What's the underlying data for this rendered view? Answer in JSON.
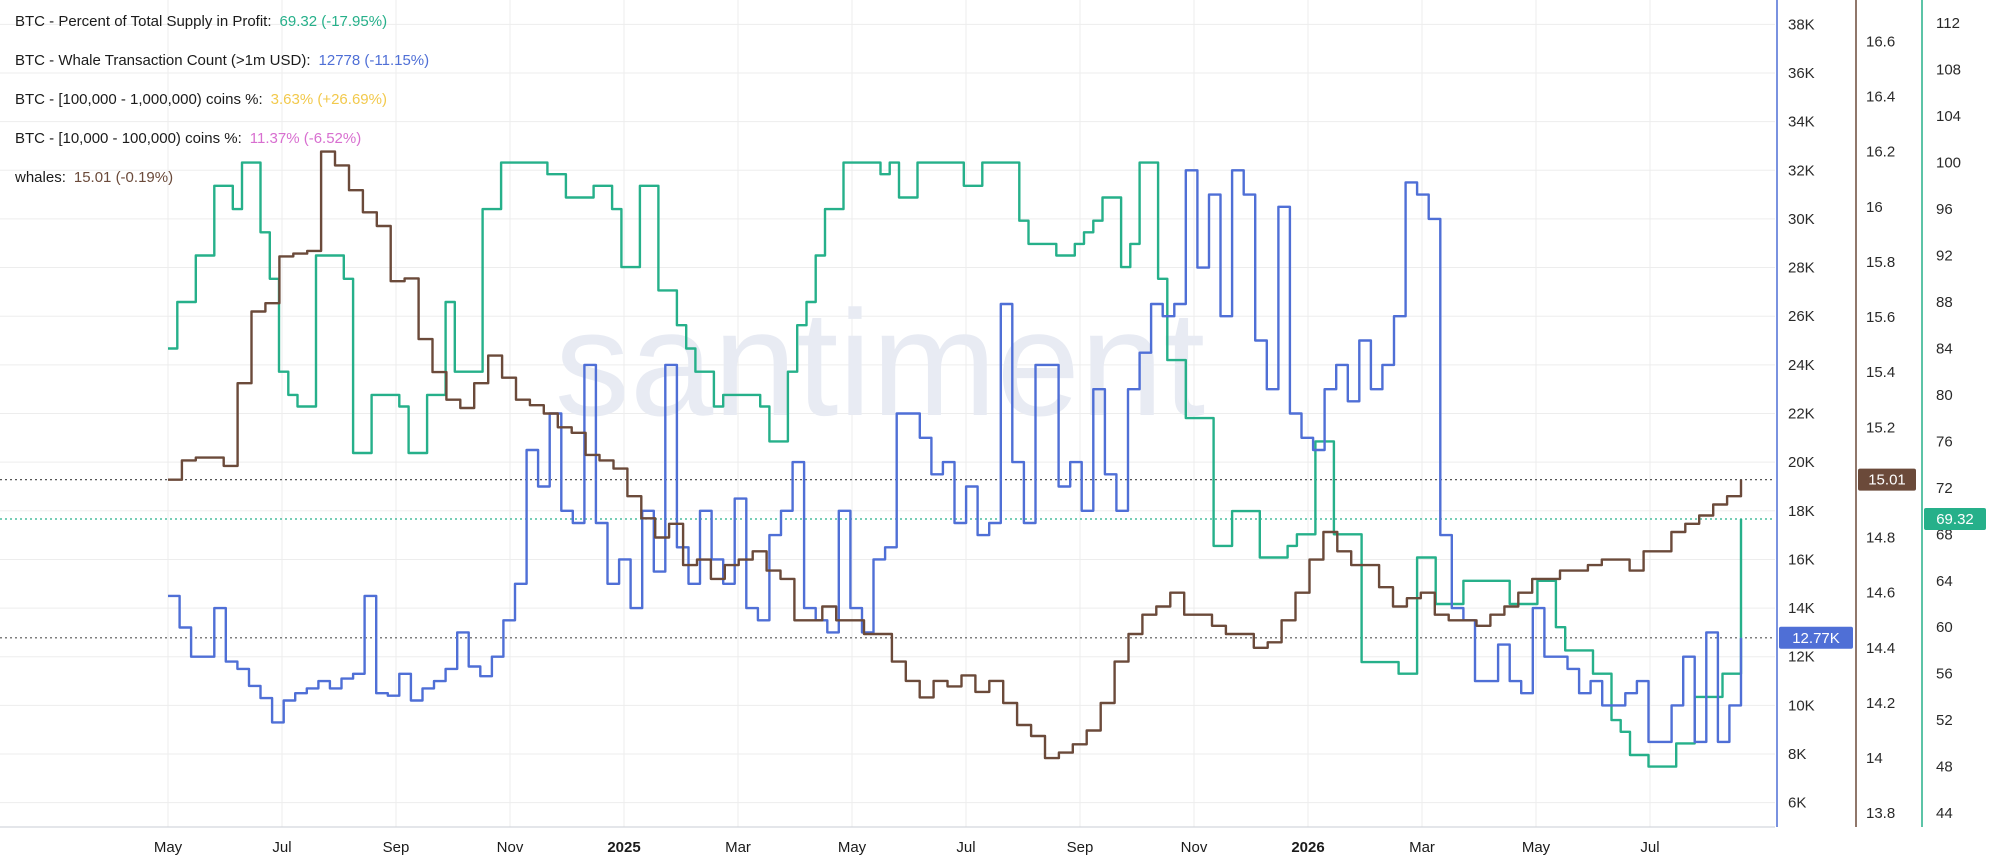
{
  "legend": [
    {
      "label": "BTC - Percent of Total Supply in Profit:",
      "value": "69.32 (-17.95%)",
      "color": "#26b08a"
    },
    {
      "label": "BTC - Whale Transaction Count (>1m USD):",
      "value": "12778 (-11.15%)",
      "color": "#4f6fd6"
    },
    {
      "label": "BTC - [100,000  - 1,000,000) coins %:",
      "value": "3.63% (+26.69%)",
      "color": "#f2c94c"
    },
    {
      "label": "BTC - [10,000 - 100,000) coins %:",
      "value": "11.37% (-6.52%)",
      "color": "#d86fd0"
    },
    {
      "label": "whales:",
      "value": "15.01 (-0.19%)",
      "color": "#6b4a3a"
    }
  ],
  "watermark": "santiment",
  "colors": {
    "profit": "#26b08a",
    "whale_tx": "#4f6fd6",
    "whales": "#6b4a3a",
    "grid": "#ededed",
    "axis": "#c9ced6"
  },
  "chart_data": {
    "type": "line",
    "x_ticks": [
      "May",
      "Jul",
      "Sep",
      "Nov",
      "2025",
      "Mar",
      "May",
      "Jul",
      "Sep",
      "Nov",
      "2026",
      "Mar",
      "May",
      "Jul"
    ],
    "x_tick_bold": [
      false,
      false,
      false,
      false,
      true,
      false,
      false,
      false,
      false,
      false,
      true,
      false,
      false,
      false
    ],
    "axes": {
      "whale_tx": {
        "range": [
          5000,
          39000
        ],
        "ticks": [
          6000,
          8000,
          10000,
          12000,
          14000,
          16000,
          18000,
          20000,
          22000,
          24000,
          26000,
          28000,
          30000,
          32000,
          34000,
          36000,
          38000
        ],
        "tick_labels": [
          "6K",
          "8K",
          "10K",
          "12K",
          "14K",
          "16K",
          "18K",
          "20K",
          "22K",
          "24K",
          "26K",
          "28K",
          "30K",
          "32K",
          "34K",
          "36K",
          "38K"
        ],
        "color": "#4f6fd6"
      },
      "whales": {
        "range": [
          13.75,
          16.75
        ],
        "ticks": [
          13.8,
          14.0,
          14.2,
          14.4,
          14.6,
          14.8,
          15.0,
          15.2,
          15.4,
          15.6,
          15.8,
          16.0,
          16.2,
          16.4,
          16.6
        ],
        "tick_labels": [
          "13.8",
          "14",
          "14.2",
          "14.4",
          "14.6",
          "14.8",
          "15",
          "15.2",
          "15.4",
          "15.6",
          "15.8",
          "16",
          "16.2",
          "16.4",
          "16.6"
        ],
        "color": "#6b4a3a"
      },
      "profit": {
        "range": [
          42.8,
          114
        ],
        "ticks": [
          44,
          48,
          52,
          56,
          60,
          64,
          68,
          72,
          76,
          80,
          84,
          88,
          92,
          96,
          100,
          104,
          108,
          112
        ],
        "tick_labels": [
          "44",
          "48",
          "52",
          "56",
          "60",
          "64",
          "68",
          "72",
          "76",
          "80",
          "84",
          "88",
          "92",
          "96",
          "100",
          "104",
          "108",
          "112"
        ],
        "color": "#26b08a"
      }
    },
    "series": [
      {
        "name": "BTC - Percent of Total Supply in Profit",
        "axis": "profit",
        "color": "#26b08a",
        "last_label": "69.32",
        "values": [
          84,
          88,
          88,
          92,
          92,
          98,
          98,
          96,
          100,
          100,
          94,
          90,
          82,
          80,
          79,
          79,
          92,
          92,
          92,
          90,
          75,
          75,
          80,
          80,
          80,
          79,
          75,
          75,
          80,
          80,
          88,
          82,
          82,
          82,
          96,
          96,
          100,
          100,
          100,
          100,
          100,
          99,
          99,
          97,
          97,
          97,
          98,
          98,
          96,
          91,
          91,
          98,
          98,
          89,
          89,
          86,
          84,
          82,
          82,
          79,
          80,
          80,
          80,
          80,
          79,
          76,
          76,
          82,
          86,
          88,
          92,
          96,
          96,
          100,
          100,
          100,
          100,
          99,
          100,
          97,
          97,
          100,
          100,
          100,
          100,
          100,
          98,
          98,
          100,
          100,
          100,
          100,
          95,
          93,
          93,
          93,
          92,
          92,
          93,
          94,
          95,
          97,
          97,
          91,
          93,
          100,
          100,
          90,
          83,
          83,
          78,
          78,
          78,
          67,
          67,
          70,
          70,
          70,
          66,
          66,
          66,
          67,
          68,
          68,
          76,
          76,
          68,
          68,
          68,
          57,
          57,
          57,
          57,
          56,
          56,
          66,
          66,
          62,
          62,
          62,
          64,
          64,
          64,
          64,
          64,
          62,
          62,
          62,
          64,
          64,
          60,
          58,
          58,
          58,
          56,
          56,
          52,
          51,
          49,
          49,
          48,
          48,
          48,
          50,
          50,
          54,
          54,
          54,
          56,
          56,
          69.32
        ]
      },
      {
        "name": "BTC - Whale Transaction Count (>1m USD)",
        "axis": "whale_tx",
        "color": "#4f6fd6",
        "last_label": "12.77K",
        "values": [
          14500,
          13200,
          12000,
          12000,
          14000,
          11800,
          11500,
          10800,
          10300,
          9300,
          10200,
          10500,
          10700,
          11000,
          10700,
          11100,
          11300,
          14500,
          10500,
          10400,
          11300,
          10200,
          10700,
          11000,
          11500,
          13000,
          11600,
          11200,
          12000,
          13500,
          15000,
          20500,
          19000,
          22000,
          18000,
          17500,
          24000,
          17500,
          15000,
          16000,
          14000,
          18000,
          15500,
          24000,
          16500,
          15000,
          18000,
          16000,
          15000,
          18500,
          14000,
          13500,
          17000,
          18000,
          20000,
          14000,
          13500,
          13000,
          18000,
          14000,
          13000,
          16000,
          16500,
          22000,
          22000,
          21000,
          19500,
          20000,
          17500,
          19000,
          17000,
          17500,
          26500,
          20000,
          17500,
          24000,
          24000,
          19000,
          20000,
          18000,
          23000,
          19500,
          18000,
          23000,
          24500,
          26500,
          26000,
          26500,
          32000,
          28000,
          31000,
          26000,
          32000,
          31000,
          25000,
          23000,
          30500,
          22000,
          21000,
          20500,
          23000,
          24000,
          22500,
          25000,
          23000,
          24000,
          26000,
          31500,
          31000,
          30000,
          17000,
          14000,
          13500,
          11000,
          11000,
          12500,
          11000,
          10500,
          14000,
          12000,
          12000,
          11500,
          10500,
          11000,
          10000,
          10000,
          10500,
          11000,
          8500,
          8500,
          10000,
          12000,
          8500,
          13000,
          8500,
          10000,
          12778
        ]
      },
      {
        "name": "whales",
        "axis": "whales",
        "color": "#6b4a3a",
        "last_label": "15.01",
        "values": [
          15.01,
          15.08,
          15.09,
          15.09,
          15.06,
          15.36,
          15.62,
          15.65,
          15.82,
          15.83,
          15.84,
          16.2,
          16.15,
          16.06,
          15.98,
          15.93,
          15.73,
          15.74,
          15.52,
          15.4,
          15.3,
          15.27,
          15.36,
          15.46,
          15.38,
          15.3,
          15.28,
          15.25,
          15.2,
          15.18,
          15.1,
          15.08,
          15.05,
          14.95,
          14.87,
          14.8,
          14.85,
          14.7,
          14.72,
          14.65,
          14.7,
          14.72,
          14.75,
          14.68,
          14.65,
          14.5,
          14.5,
          14.55,
          14.5,
          14.5,
          14.45,
          14.45,
          14.35,
          14.28,
          14.22,
          14.28,
          14.26,
          14.3,
          14.24,
          14.28,
          14.2,
          14.12,
          14.08,
          14.0,
          14.02,
          14.05,
          14.1,
          14.2,
          14.35,
          14.45,
          14.52,
          14.55,
          14.6,
          14.52,
          14.52,
          14.48,
          14.45,
          14.45,
          14.4,
          14.42,
          14.5,
          14.6,
          14.72,
          14.82,
          14.75,
          14.7,
          14.7,
          14.62,
          14.55,
          14.58,
          14.6,
          14.52,
          14.5,
          14.5,
          14.48,
          14.52,
          14.55,
          14.6,
          14.65,
          14.65,
          14.68,
          14.68,
          14.7,
          14.72,
          14.72,
          14.68,
          14.75,
          14.75,
          14.82,
          14.85,
          14.88,
          14.92,
          14.95,
          15.01
        ]
      }
    ]
  }
}
